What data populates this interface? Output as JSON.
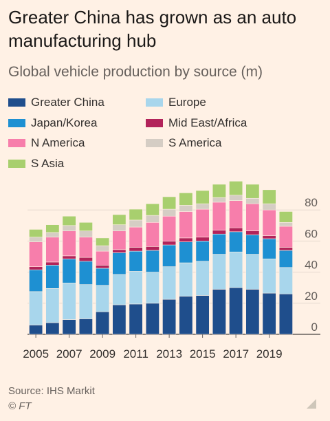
{
  "title": "Greater China has grown as an auto manufacturing hub",
  "subtitle": "Global vehicle production by source (m)",
  "source": "Source: IHS Markit",
  "credit": "© FT",
  "chart_data": {
    "type": "bar",
    "stacked": true,
    "categories": [
      "2005",
      "2006",
      "2007",
      "2008",
      "2009",
      "2010",
      "2011",
      "2012",
      "2013",
      "2014",
      "2015",
      "2016",
      "2017",
      "2018",
      "2019",
      "2020"
    ],
    "x_tick_labels": [
      "2005",
      "2007",
      "2009",
      "2011",
      "2013",
      "2015",
      "2017",
      "2019"
    ],
    "y_ticks": [
      0,
      20,
      40,
      60,
      80
    ],
    "ylim": [
      0,
      100
    ],
    "y_axis_position": "right",
    "legend_position": "top",
    "series": [
      {
        "name": "Greater China",
        "color": "#1f4e8c",
        "values": [
          6,
          7.5,
          9.5,
          10,
          14.5,
          19,
          19.5,
          20,
          22.5,
          24.5,
          25,
          29,
          30,
          29,
          26.5,
          26
        ]
      },
      {
        "name": "Europe",
        "color": "#a8d6ec",
        "values": [
          21.5,
          22,
          23.5,
          22,
          17,
          19.5,
          21,
          20,
          21,
          21.5,
          22,
          22.5,
          23,
          22.5,
          22,
          17
        ]
      },
      {
        "name": "Japan/Korea",
        "color": "#1e90d2",
        "values": [
          14,
          15,
          15.5,
          15,
          11,
          14,
          13,
          14,
          14,
          13.5,
          13,
          13,
          13,
          12.5,
          13,
          11
        ]
      },
      {
        "name": "Mid East/Africa",
        "color": "#b2235a",
        "values": [
          2,
          2,
          2,
          2.5,
          2,
          2,
          2.5,
          2.5,
          2.5,
          2.5,
          2.5,
          2.5,
          2.5,
          2.5,
          2,
          2
        ]
      },
      {
        "name": "N America",
        "color": "#f77eab",
        "values": [
          16,
          16,
          16,
          13,
          9,
          12,
          13,
          15.5,
          16,
          17,
          18,
          18,
          17.5,
          17.5,
          16.5,
          13.5
        ]
      },
      {
        "name": "S America",
        "color": "#d5cdc4",
        "values": [
          3,
          3,
          3.5,
          4,
          3.5,
          4,
          4.5,
          4.5,
          4.5,
          4,
          3.5,
          3,
          3.5,
          3.5,
          4,
          2.5
        ]
      },
      {
        "name": "S Asia",
        "color": "#a8cf6e",
        "values": [
          5,
          5,
          6,
          5.5,
          5,
          6.5,
          7,
          7.5,
          8,
          8,
          8.5,
          8.5,
          9,
          9,
          9,
          7
        ]
      }
    ]
  }
}
